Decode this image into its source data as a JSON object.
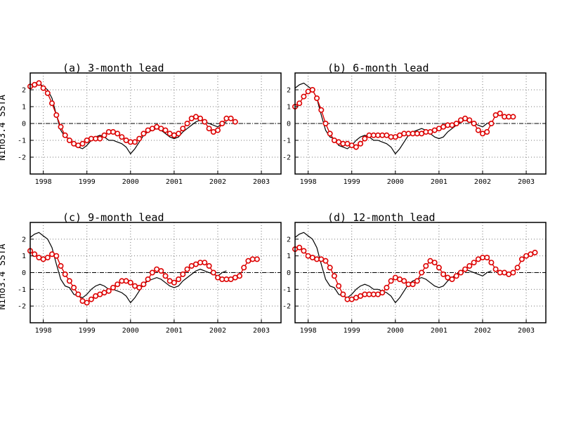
{
  "chart_data": [
    {
      "type": "line",
      "title": "(a) 3-month lead",
      "ylabel": "Nino3.4 SSTA",
      "xlim": [
        1997.7,
        2003.45
      ],
      "ylim": [
        -3,
        3
      ],
      "x_ticks": [
        "1998",
        "1999",
        "2000",
        "2001",
        "2002",
        "2003"
      ],
      "y_ticks": [
        "-2",
        "-1",
        "0",
        "1",
        "2"
      ],
      "grid": true,
      "zero_line": true,
      "observed": {
        "x": [
          1997.7,
          1997.8,
          1997.9,
          1998.0,
          1998.1,
          1998.2,
          1998.3,
          1998.4,
          1998.5,
          1998.6,
          1998.7,
          1998.8,
          1998.9,
          1999.0,
          1999.1,
          1999.2,
          1999.3,
          1999.4,
          1999.5,
          1999.6,
          1999.7,
          1999.8,
          1999.9,
          2000.0,
          2000.1,
          2000.2,
          2000.3,
          2000.4,
          2000.5,
          2000.6,
          2000.7,
          2000.8,
          2000.9,
          2001.0,
          2001.1,
          2001.2,
          2001.3,
          2001.4,
          2001.5,
          2001.6,
          2001.7,
          2001.8,
          2001.9,
          2002.0,
          2002.1,
          2002.2
        ],
        "y": [
          2.1,
          2.3,
          2.4,
          2.2,
          2.0,
          1.5,
          0.5,
          -0.4,
          -0.8,
          -0.9,
          -1.3,
          -1.4,
          -1.5,
          -1.3,
          -1.0,
          -0.8,
          -0.7,
          -0.8,
          -1.0,
          -1.0,
          -1.1,
          -1.2,
          -1.4,
          -1.8,
          -1.5,
          -1.1,
          -0.7,
          -0.5,
          -0.4,
          -0.3,
          -0.4,
          -0.6,
          -0.8,
          -0.9,
          -0.8,
          -0.5,
          -0.3,
          -0.1,
          0.1,
          0.2,
          0.1,
          0.0,
          -0.1,
          -0.2,
          0.0,
          0.1
        ]
      },
      "forecast": {
        "x": [
          1997.7,
          1997.8,
          1997.9,
          1998.0,
          1998.1,
          1998.2,
          1998.3,
          1998.4,
          1998.5,
          1998.6,
          1998.7,
          1998.8,
          1998.9,
          1999.0,
          1999.1,
          1999.2,
          1999.3,
          1999.4,
          1999.5,
          1999.6,
          1999.7,
          1999.8,
          1999.9,
          2000.0,
          2000.1,
          2000.2,
          2000.3,
          2000.4,
          2000.5,
          2000.6,
          2000.7,
          2000.8,
          2000.9,
          2001.0,
          2001.1,
          2001.2,
          2001.3,
          2001.4,
          2001.5,
          2001.6,
          2001.7,
          2001.8,
          2001.9,
          2002.0,
          2002.1,
          2002.2,
          2002.3,
          2002.4
        ],
        "y": [
          2.2,
          2.3,
          2.4,
          2.1,
          1.8,
          1.2,
          0.5,
          -0.2,
          -0.7,
          -1.0,
          -1.2,
          -1.3,
          -1.2,
          -1.0,
          -0.9,
          -0.9,
          -0.9,
          -0.7,
          -0.5,
          -0.5,
          -0.6,
          -0.8,
          -1.0,
          -1.1,
          -1.1,
          -0.9,
          -0.6,
          -0.4,
          -0.3,
          -0.2,
          -0.3,
          -0.4,
          -0.6,
          -0.7,
          -0.6,
          -0.3,
          0.0,
          0.3,
          0.4,
          0.3,
          0.1,
          -0.3,
          -0.5,
          -0.4,
          0.0,
          0.3,
          0.3,
          0.1
        ]
      }
    },
    {
      "type": "line",
      "title": "(b) 6-month lead",
      "ylabel": "",
      "xlim": [
        1997.7,
        2003.45
      ],
      "ylim": [
        -3,
        3
      ],
      "x_ticks": [
        "1998",
        "1999",
        "2000",
        "2001",
        "2002",
        "2003"
      ],
      "y_ticks": [
        "-2",
        "-1",
        "0",
        "1",
        "2"
      ],
      "grid": true,
      "zero_line": true,
      "observed": {
        "x": [
          1997.7,
          1997.8,
          1997.9,
          1998.0,
          1998.1,
          1998.2,
          1998.3,
          1998.4,
          1998.5,
          1998.6,
          1998.7,
          1998.8,
          1998.9,
          1999.0,
          1999.1,
          1999.2,
          1999.3,
          1999.4,
          1999.5,
          1999.6,
          1999.7,
          1999.8,
          1999.9,
          2000.0,
          2000.1,
          2000.2,
          2000.3,
          2000.4,
          2000.5,
          2000.6,
          2000.7,
          2000.8,
          2000.9,
          2001.0,
          2001.1,
          2001.2,
          2001.3,
          2001.4,
          2001.5,
          2001.6,
          2001.7,
          2001.8,
          2001.9,
          2002.0,
          2002.1,
          2002.2
        ],
        "y": [
          2.1,
          2.3,
          2.4,
          2.2,
          2.0,
          1.5,
          0.5,
          -0.4,
          -0.8,
          -0.9,
          -1.3,
          -1.4,
          -1.5,
          -1.3,
          -1.0,
          -0.8,
          -0.7,
          -0.8,
          -1.0,
          -1.0,
          -1.1,
          -1.2,
          -1.4,
          -1.8,
          -1.5,
          -1.1,
          -0.7,
          -0.5,
          -0.4,
          -0.3,
          -0.4,
          -0.6,
          -0.8,
          -0.9,
          -0.8,
          -0.5,
          -0.3,
          -0.1,
          0.1,
          0.2,
          0.1,
          0.0,
          -0.1,
          -0.2,
          0.0,
          0.1
        ]
      },
      "forecast": {
        "x": [
          1997.7,
          1997.8,
          1997.9,
          1998.0,
          1998.1,
          1998.2,
          1998.3,
          1998.4,
          1998.5,
          1998.6,
          1998.7,
          1998.8,
          1998.9,
          1999.0,
          1999.1,
          1999.2,
          1999.3,
          1999.4,
          1999.5,
          1999.6,
          1999.7,
          1999.8,
          1999.9,
          2000.0,
          2000.1,
          2000.2,
          2000.3,
          2000.4,
          2000.5,
          2000.6,
          2000.7,
          2000.8,
          2000.9,
          2001.0,
          2001.1,
          2001.2,
          2001.3,
          2001.4,
          2001.5,
          2001.6,
          2001.7,
          2001.8,
          2001.9,
          2002.0,
          2002.1,
          2002.2,
          2002.3,
          2002.4,
          2002.5,
          2002.6,
          2002.7
        ],
        "y": [
          1.0,
          1.2,
          1.6,
          1.9,
          2.0,
          1.5,
          0.8,
          0.0,
          -0.6,
          -1.0,
          -1.1,
          -1.2,
          -1.2,
          -1.3,
          -1.4,
          -1.2,
          -0.9,
          -0.7,
          -0.7,
          -0.7,
          -0.7,
          -0.7,
          -0.8,
          -0.8,
          -0.7,
          -0.6,
          -0.6,
          -0.6,
          -0.6,
          -0.6,
          -0.5,
          -0.5,
          -0.4,
          -0.3,
          -0.2,
          -0.1,
          -0.1,
          0.0,
          0.2,
          0.3,
          0.2,
          0.0,
          -0.4,
          -0.6,
          -0.5,
          0.0,
          0.5,
          0.6,
          0.4,
          0.4,
          0.4
        ]
      }
    },
    {
      "type": "line",
      "title": "(c) 9-month lead",
      "ylabel": "Nino3.4 SSTA",
      "xlim": [
        1997.7,
        2003.45
      ],
      "ylim": [
        -3,
        3
      ],
      "x_ticks": [
        "1998",
        "1999",
        "2000",
        "2001",
        "2002",
        "2003"
      ],
      "y_ticks": [
        "-2",
        "-1",
        "0",
        "1",
        "2"
      ],
      "grid": true,
      "zero_line": true,
      "observed": {
        "x": [
          1997.7,
          1997.8,
          1997.9,
          1998.0,
          1998.1,
          1998.2,
          1998.3,
          1998.4,
          1998.5,
          1998.6,
          1998.7,
          1998.8,
          1998.9,
          1999.0,
          1999.1,
          1999.2,
          1999.3,
          1999.4,
          1999.5,
          1999.6,
          1999.7,
          1999.8,
          1999.9,
          2000.0,
          2000.1,
          2000.2,
          2000.3,
          2000.4,
          2000.5,
          2000.6,
          2000.7,
          2000.8,
          2000.9,
          2001.0,
          2001.1,
          2001.2,
          2001.3,
          2001.4,
          2001.5,
          2001.6,
          2001.7,
          2001.8,
          2001.9,
          2002.0,
          2002.1,
          2002.2
        ],
        "y": [
          2.1,
          2.3,
          2.4,
          2.2,
          2.0,
          1.5,
          0.5,
          -0.4,
          -0.8,
          -0.9,
          -1.3,
          -1.4,
          -1.5,
          -1.3,
          -1.0,
          -0.8,
          -0.7,
          -0.8,
          -1.0,
          -1.0,
          -1.1,
          -1.2,
          -1.4,
          -1.8,
          -1.5,
          -1.1,
          -0.7,
          -0.5,
          -0.4,
          -0.3,
          -0.4,
          -0.6,
          -0.8,
          -0.9,
          -0.8,
          -0.5,
          -0.3,
          -0.1,
          0.1,
          0.2,
          0.1,
          0.0,
          -0.1,
          -0.2,
          0.0,
          0.1
        ]
      },
      "forecast": {
        "x": [
          1997.7,
          1997.8,
          1997.9,
          1998.0,
          1998.1,
          1998.2,
          1998.3,
          1998.4,
          1998.5,
          1998.6,
          1998.7,
          1998.8,
          1998.9,
          1999.0,
          1999.1,
          1999.2,
          1999.3,
          1999.4,
          1999.5,
          1999.6,
          1999.7,
          1999.8,
          1999.9,
          2000.0,
          2000.1,
          2000.2,
          2000.3,
          2000.4,
          2000.5,
          2000.6,
          2000.7,
          2000.8,
          2000.9,
          2001.0,
          2001.1,
          2001.2,
          2001.3,
          2001.4,
          2001.5,
          2001.6,
          2001.7,
          2001.8,
          2001.9,
          2002.0,
          2002.1,
          2002.2,
          2002.3,
          2002.4,
          2002.5,
          2002.6,
          2002.7,
          2002.8,
          2002.9
        ],
        "y": [
          1.3,
          1.1,
          0.9,
          0.8,
          0.9,
          1.1,
          1.0,
          0.4,
          -0.1,
          -0.5,
          -0.9,
          -1.3,
          -1.7,
          -1.8,
          -1.6,
          -1.4,
          -1.3,
          -1.2,
          -1.1,
          -0.9,
          -0.7,
          -0.5,
          -0.5,
          -0.6,
          -0.8,
          -0.9,
          -0.7,
          -0.4,
          0.0,
          0.2,
          0.1,
          -0.2,
          -0.5,
          -0.6,
          -0.4,
          -0.1,
          0.2,
          0.4,
          0.5,
          0.6,
          0.6,
          0.4,
          0.0,
          -0.3,
          -0.4,
          -0.4,
          -0.4,
          -0.3,
          -0.2,
          0.3,
          0.7,
          0.8,
          0.8
        ]
      }
    },
    {
      "type": "line",
      "title": "(d) 12-month lead",
      "ylabel": "",
      "xlim": [
        1997.7,
        2003.45
      ],
      "ylim": [
        -3,
        3
      ],
      "x_ticks": [
        "1998",
        "1999",
        "2000",
        "2001",
        "2002",
        "2003"
      ],
      "y_ticks": [
        "-2",
        "-1",
        "0",
        "1",
        "2"
      ],
      "grid": true,
      "zero_line": true,
      "observed": {
        "x": [
          1997.7,
          1997.8,
          1997.9,
          1998.0,
          1998.1,
          1998.2,
          1998.3,
          1998.4,
          1998.5,
          1998.6,
          1998.7,
          1998.8,
          1998.9,
          1999.0,
          1999.1,
          1999.2,
          1999.3,
          1999.4,
          1999.5,
          1999.6,
          1999.7,
          1999.8,
          1999.9,
          2000.0,
          2000.1,
          2000.2,
          2000.3,
          2000.4,
          2000.5,
          2000.6,
          2000.7,
          2000.8,
          2000.9,
          2001.0,
          2001.1,
          2001.2,
          2001.3,
          2001.4,
          2001.5,
          2001.6,
          2001.7,
          2001.8,
          2001.9,
          2002.0,
          2002.1,
          2002.2
        ],
        "y": [
          2.1,
          2.3,
          2.4,
          2.2,
          2.0,
          1.5,
          0.5,
          -0.4,
          -0.8,
          -0.9,
          -1.3,
          -1.4,
          -1.5,
          -1.3,
          -1.0,
          -0.8,
          -0.7,
          -0.8,
          -1.0,
          -1.0,
          -1.1,
          -1.2,
          -1.4,
          -1.8,
          -1.5,
          -1.1,
          -0.7,
          -0.5,
          -0.4,
          -0.3,
          -0.4,
          -0.6,
          -0.8,
          -0.9,
          -0.8,
          -0.5,
          -0.3,
          -0.1,
          0.1,
          0.2,
          0.1,
          0.0,
          -0.1,
          -0.2,
          0.0,
          0.1
        ]
      },
      "forecast": {
        "x": [
          1997.7,
          1997.8,
          1997.9,
          1998.0,
          1998.1,
          1998.2,
          1998.3,
          1998.4,
          1998.5,
          1998.6,
          1998.7,
          1998.8,
          1998.9,
          1999.0,
          1999.1,
          1999.2,
          1999.3,
          1999.4,
          1999.5,
          1999.6,
          1999.7,
          1999.8,
          1999.9,
          2000.0,
          2000.1,
          2000.2,
          2000.3,
          2000.4,
          2000.5,
          2000.6,
          2000.7,
          2000.8,
          2000.9,
          2001.0,
          2001.1,
          2001.2,
          2001.3,
          2001.4,
          2001.5,
          2001.6,
          2001.7,
          2001.8,
          2001.9,
          2002.0,
          2002.1,
          2002.2,
          2002.3,
          2002.4,
          2002.5,
          2002.6,
          2002.7,
          2002.8,
          2002.9,
          2003.0,
          2003.1,
          2003.2
        ],
        "y": [
          1.4,
          1.5,
          1.3,
          1.0,
          0.9,
          0.8,
          0.8,
          0.7,
          0.3,
          -0.2,
          -0.8,
          -1.3,
          -1.6,
          -1.6,
          -1.5,
          -1.4,
          -1.3,
          -1.3,
          -1.3,
          -1.3,
          -1.2,
          -0.9,
          -0.5,
          -0.3,
          -0.4,
          -0.5,
          -0.7,
          -0.7,
          -0.5,
          0.0,
          0.4,
          0.7,
          0.6,
          0.3,
          -0.1,
          -0.3,
          -0.4,
          -0.2,
          0.0,
          0.2,
          0.4,
          0.6,
          0.8,
          0.9,
          0.9,
          0.6,
          0.2,
          0.0,
          0.0,
          -0.1,
          0.0,
          0.3,
          0.8,
          1.0,
          1.1,
          1.2
        ]
      }
    }
  ],
  "colors": {
    "observed_line": "#000000",
    "forecast_marker": "#dd0000",
    "grid": "#777777",
    "axes": "#000000"
  }
}
